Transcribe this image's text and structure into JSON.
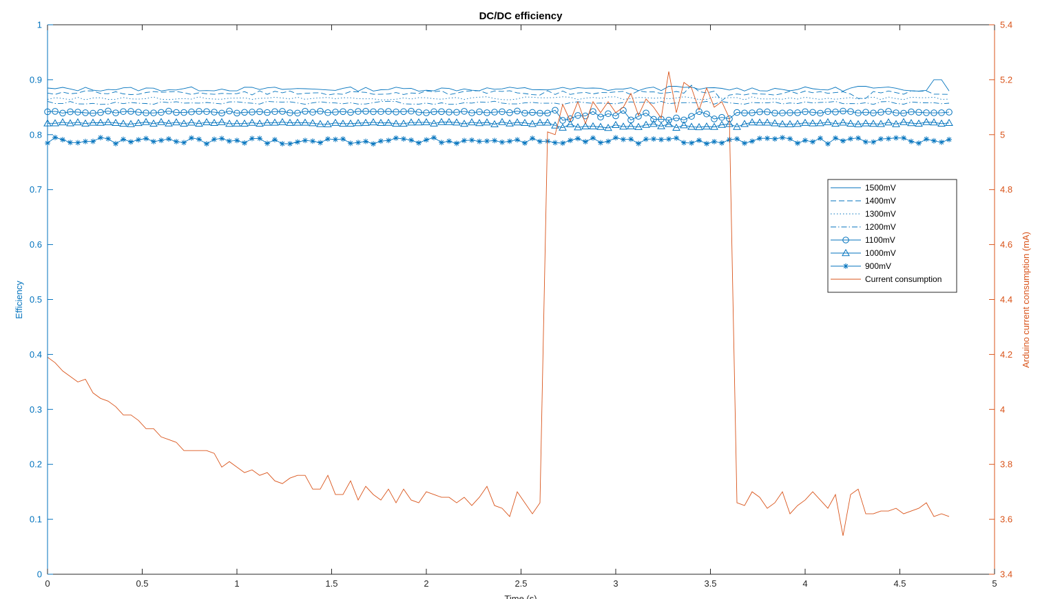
{
  "chart_data": {
    "type": "line",
    "title": "DC/DC efficiency",
    "xlabel": "Time (s)",
    "ylabel_left": "Efficiency",
    "ylabel_right": "Arduino current consumption (mA)",
    "xlim": [
      0,
      5
    ],
    "ylim_left": [
      0,
      1
    ],
    "ylim_right": [
      3.4,
      5.4
    ],
    "x_ticks": [
      "0",
      "0.5",
      "1",
      "1.5",
      "2",
      "2.5",
      "3",
      "3.5",
      "4",
      "4.5",
      "5"
    ],
    "y_left_ticks": [
      "0",
      "0.1",
      "0.2",
      "0.3",
      "0.4",
      "0.5",
      "0.6",
      "0.7",
      "0.8",
      "0.9",
      "1"
    ],
    "y_right_ticks": [
      "3.4",
      "3.6",
      "3.8",
      "4",
      "4.2",
      "4.4",
      "4.6",
      "4.8",
      "5",
      "5.2",
      "5.4"
    ],
    "grid": false,
    "legend_position": "right",
    "colors": {
      "efficiency": "#0072BD",
      "current": "#D95319",
      "axis_left": "#0072BD",
      "axis_right": "#D95319"
    },
    "x_range": {
      "start": 0,
      "end": 4.76,
      "step": 0.04
    },
    "series": [
      {
        "name": "1500mV",
        "axis": "left",
        "line_style": "solid",
        "marker": "none",
        "base": 0.883,
        "noise": 0.004,
        "excursions": [
          [
            3.3,
            0.888
          ],
          [
            4.3,
            0.888
          ],
          [
            4.7,
            0.9
          ]
        ]
      },
      {
        "name": "1400mV",
        "axis": "left",
        "line_style": "dashed",
        "marker": "none",
        "base": 0.876,
        "noise": 0.004,
        "excursions": [
          [
            3.4,
            0.89
          ],
          [
            3.55,
            0.862
          ],
          [
            4.3,
            0.866
          ]
        ]
      },
      {
        "name": "1300mV",
        "axis": "left",
        "line_style": "dotted",
        "marker": "none",
        "base": 0.866,
        "noise": 0.003
      },
      {
        "name": "1200mV",
        "axis": "left",
        "line_style": "dashdot",
        "marker": "none",
        "base": 0.858,
        "noise": 0.003
      },
      {
        "name": "1100mV",
        "axis": "left",
        "line_style": "solid",
        "marker": "circle",
        "base": 0.841,
        "noise": 0.002,
        "disturbed_range": [
          2.68,
          3.65
        ],
        "disturbed_base": 0.835,
        "disturbed_noise": 0.01
      },
      {
        "name": "1000mV",
        "axis": "left",
        "line_style": "solid",
        "marker": "triangle",
        "base": 0.821,
        "noise": 0.002,
        "disturbed_range": [
          2.68,
          3.65
        ],
        "disturbed_base": 0.816,
        "disturbed_noise": 0.004
      },
      {
        "name": "900mV",
        "axis": "left",
        "line_style": "solid",
        "marker": "star",
        "base": 0.789,
        "noise": 0.006
      },
      {
        "name": "Current consumption",
        "axis": "right",
        "line_style": "solid",
        "marker": "none",
        "points": [
          [
            0,
            4.19
          ],
          [
            0.04,
            4.17
          ],
          [
            0.08,
            4.14
          ],
          [
            0.12,
            4.12
          ],
          [
            0.16,
            4.1
          ],
          [
            0.2,
            4.11
          ],
          [
            0.24,
            4.06
          ],
          [
            0.28,
            4.04
          ],
          [
            0.32,
            4.03
          ],
          [
            0.36,
            4.01
          ],
          [
            0.4,
            3.98
          ],
          [
            0.44,
            3.98
          ],
          [
            0.48,
            3.96
          ],
          [
            0.52,
            3.93
          ],
          [
            0.56,
            3.93
          ],
          [
            0.6,
            3.9
          ],
          [
            0.64,
            3.89
          ],
          [
            0.68,
            3.88
          ],
          [
            0.72,
            3.85
          ],
          [
            0.76,
            3.85
          ],
          [
            0.8,
            3.85
          ],
          [
            0.84,
            3.85
          ],
          [
            0.88,
            3.84
          ],
          [
            0.92,
            3.79
          ],
          [
            0.96,
            3.81
          ],
          [
            1.0,
            3.79
          ],
          [
            1.04,
            3.77
          ],
          [
            1.08,
            3.78
          ],
          [
            1.12,
            3.76
          ],
          [
            1.16,
            3.77
          ],
          [
            1.2,
            3.74
          ],
          [
            1.24,
            3.73
          ],
          [
            1.28,
            3.75
          ],
          [
            1.32,
            3.76
          ],
          [
            1.36,
            3.76
          ],
          [
            1.4,
            3.71
          ],
          [
            1.44,
            3.71
          ],
          [
            1.48,
            3.76
          ],
          [
            1.52,
            3.69
          ],
          [
            1.56,
            3.69
          ],
          [
            1.6,
            3.74
          ],
          [
            1.64,
            3.67
          ],
          [
            1.68,
            3.72
          ],
          [
            1.72,
            3.69
          ],
          [
            1.76,
            3.67
          ],
          [
            1.8,
            3.71
          ],
          [
            1.84,
            3.66
          ],
          [
            1.88,
            3.71
          ],
          [
            1.92,
            3.67
          ],
          [
            1.96,
            3.66
          ],
          [
            2.0,
            3.7
          ],
          [
            2.04,
            3.69
          ],
          [
            2.08,
            3.68
          ],
          [
            2.12,
            3.68
          ],
          [
            2.16,
            3.66
          ],
          [
            2.2,
            3.68
          ],
          [
            2.24,
            3.65
          ],
          [
            2.28,
            3.68
          ],
          [
            2.32,
            3.72
          ],
          [
            2.36,
            3.65
          ],
          [
            2.4,
            3.64
          ],
          [
            2.44,
            3.61
          ],
          [
            2.48,
            3.7
          ],
          [
            2.52,
            3.66
          ],
          [
            2.56,
            3.62
          ],
          [
            2.6,
            3.66
          ],
          [
            2.64,
            5.01
          ],
          [
            2.68,
            5.0
          ],
          [
            2.72,
            5.11
          ],
          [
            2.76,
            5.05
          ],
          [
            2.8,
            5.12
          ],
          [
            2.84,
            5.04
          ],
          [
            2.88,
            5.12
          ],
          [
            2.92,
            5.08
          ],
          [
            2.96,
            5.12
          ],
          [
            3.0,
            5.08
          ],
          [
            3.04,
            5.1
          ],
          [
            3.08,
            5.15
          ],
          [
            3.12,
            5.07
          ],
          [
            3.16,
            5.13
          ],
          [
            3.2,
            5.1
          ],
          [
            3.24,
            5.06
          ],
          [
            3.28,
            5.23
          ],
          [
            3.32,
            5.08
          ],
          [
            3.36,
            5.19
          ],
          [
            3.4,
            5.17
          ],
          [
            3.44,
            5.09
          ],
          [
            3.48,
            5.17
          ],
          [
            3.52,
            5.1
          ],
          [
            3.56,
            5.12
          ],
          [
            3.6,
            5.06
          ],
          [
            3.64,
            3.66
          ],
          [
            3.68,
            3.65
          ],
          [
            3.72,
            3.7
          ],
          [
            3.76,
            3.68
          ],
          [
            3.8,
            3.64
          ],
          [
            3.84,
            3.66
          ],
          [
            3.88,
            3.7
          ],
          [
            3.92,
            3.62
          ],
          [
            3.96,
            3.65
          ],
          [
            4.0,
            3.67
          ],
          [
            4.04,
            3.7
          ],
          [
            4.08,
            3.67
          ],
          [
            4.12,
            3.64
          ],
          [
            4.16,
            3.69
          ],
          [
            4.2,
            3.54
          ],
          [
            4.24,
            3.69
          ],
          [
            4.28,
            3.71
          ],
          [
            4.32,
            3.62
          ],
          [
            4.36,
            3.62
          ],
          [
            4.4,
            3.63
          ],
          [
            4.44,
            3.63
          ],
          [
            4.48,
            3.64
          ],
          [
            4.52,
            3.62
          ],
          [
            4.56,
            3.63
          ],
          [
            4.6,
            3.64
          ],
          [
            4.64,
            3.66
          ],
          [
            4.68,
            3.61
          ],
          [
            4.72,
            3.62
          ],
          [
            4.76,
            3.61
          ]
        ]
      }
    ]
  }
}
